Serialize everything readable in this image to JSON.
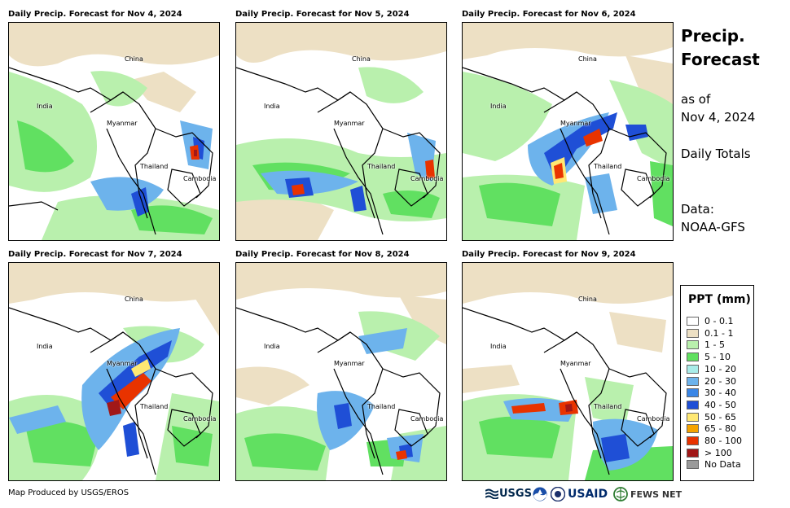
{
  "panels": [
    {
      "title": "Daily Precip. Forecast for Nov 4, 2024"
    },
    {
      "title": "Daily Precip. Forecast for Nov 5, 2024"
    },
    {
      "title": "Daily Precip. Forecast for Nov 6, 2024"
    },
    {
      "title": "Daily Precip. Forecast for Nov 7, 2024"
    },
    {
      "title": "Daily Precip. Forecast for Nov 8, 2024"
    },
    {
      "title": "Daily Precip. Forecast for Nov 9, 2024"
    }
  ],
  "places": {
    "china": "China",
    "india": "India",
    "myanmar": "Myanmar",
    "thailand": "Thailand",
    "cambodia": "Cambodia"
  },
  "sidebar": {
    "title_line1": "Precip.",
    "title_line2": "Forecast",
    "asof_line1": "as of",
    "asof_line2": "Nov 4, 2024",
    "daily_totals": "Daily Totals",
    "data_line1": "Data:",
    "data_line2": "NOAA-GFS"
  },
  "legend": {
    "title": "PPT (mm)",
    "items": [
      {
        "label": "0 - 0.1",
        "color": "#ffffff"
      },
      {
        "label": "0.1 - 1",
        "color": "#ede0c4"
      },
      {
        "label": "1 - 5",
        "color": "#b9f0ad"
      },
      {
        "label": "5 - 10",
        "color": "#61e061"
      },
      {
        "label": "10 - 20",
        "color": "#a9ece9"
      },
      {
        "label": "20 - 30",
        "color": "#6db3ec"
      },
      {
        "label": "30 - 40",
        "color": "#3a86e6"
      },
      {
        "label": "40 - 50",
        "color": "#1f4fd6"
      },
      {
        "label": "50 - 65",
        "color": "#ffe873"
      },
      {
        "label": "65 - 80",
        "color": "#f5a300"
      },
      {
        "label": "80 - 100",
        "color": "#e83300"
      },
      {
        "label": "> 100",
        "color": "#a11818"
      },
      {
        "label": "No Data",
        "color": "#9a9a9a"
      }
    ]
  },
  "footer": {
    "credit": "Map Produced by USGS/EROS",
    "logo_usgs": "USGS",
    "logo_usaid": "USAID",
    "logo_fews": "FEWS NET"
  }
}
